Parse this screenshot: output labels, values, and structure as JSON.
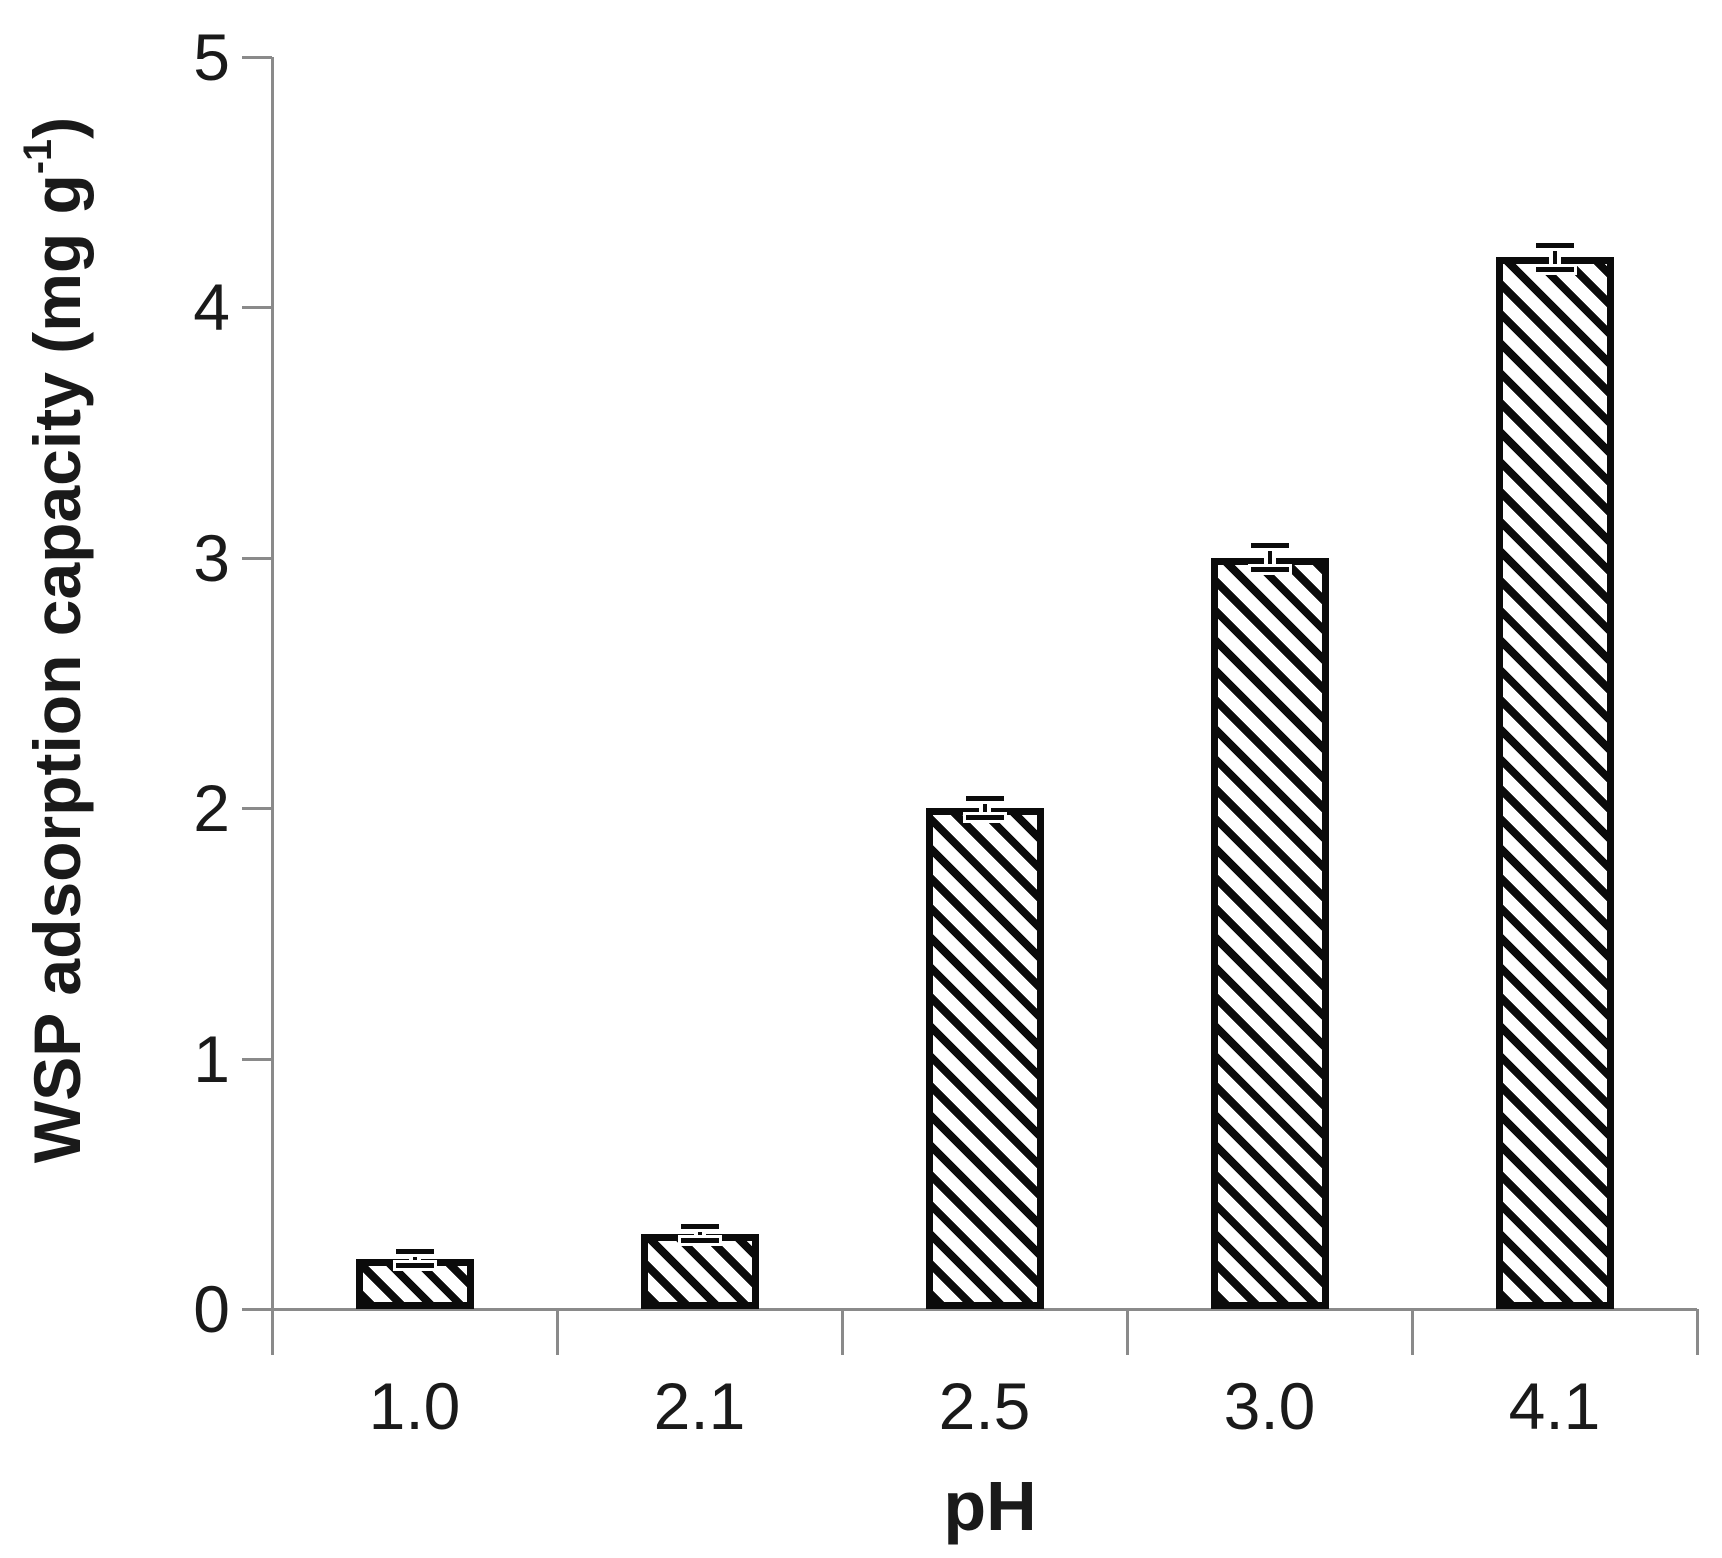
{
  "chart_data": {
    "type": "bar",
    "title": "",
    "xlabel": "pH",
    "ylabel": "WSP adsorption capacity (mg g⁻¹)",
    "ylabel_parts": {
      "prefix": "WSP adsorption capacity (mg g",
      "superscript": "-1",
      "suffix": ")"
    },
    "categories": [
      "1.0",
      "2.1",
      "2.5",
      "3.0",
      "4.1"
    ],
    "series": [
      {
        "name": "WSP adsorption capacity",
        "values": [
          0.2,
          0.3,
          2.0,
          3.0,
          4.2
        ],
        "errors": [
          0.03,
          0.03,
          0.04,
          0.05,
          0.05
        ]
      }
    ],
    "y_ticks": [
      "0",
      "1",
      "2",
      "3",
      "4",
      "5"
    ],
    "ylim": [
      0,
      5
    ],
    "grid": false,
    "legend_position": "none",
    "bar_style": {
      "fill": "#ffffff",
      "hatch": "diagonal-down",
      "hatch_color": "#0b0b0b",
      "border_color": "#0b0b0b"
    },
    "axis_color": "#8a8a8a",
    "text_color": "#1a1a1a"
  }
}
